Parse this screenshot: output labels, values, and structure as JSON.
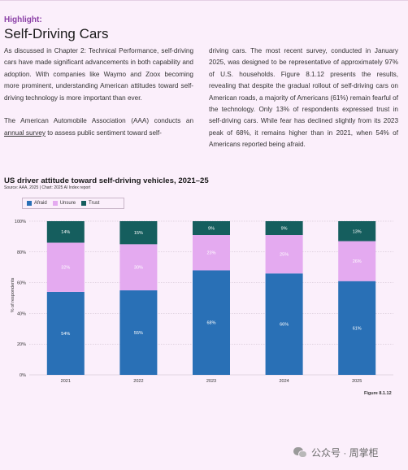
{
  "header": {
    "highlight_label": "Highlight:",
    "title": "Self-Driving Cars"
  },
  "body": {
    "left_paragraphs": [
      "As discussed in Chapter 2: Technical Performance, self-driving cars have made significant advancements in both capability and adoption. With companies like Waymo and Zoox becoming more prominent, understanding American attitudes toward self-driving technology is more important than ever.",
      "The American Automobile Association (AAA) conducts an"
    ],
    "link_text": "annual survey",
    "link_tail": " to assess public sentiment toward self-",
    "right_paragraph": "driving cars. The most recent survey, conducted in January 2025, was designed to be representative of approximately 97% of U.S. households. Figure 8.1.12 presents the results, revealing that despite the gradual rollout of self-driving cars on American roads, a majority of Americans (61%) remain fearful of the technology. Only 13% of respondents expressed trust in self-driving cars. While fear has declined slightly from its 2023 peak of 68%, it remains higher than in 2021, when 54% of Americans reported being afraid."
  },
  "chart_data": {
    "type": "bar",
    "stacked": true,
    "title": "US driver attitude toward self-driving vehicles, 2021–25",
    "source": "Source: AAA, 2025 | Chart: 2025 AI Index report",
    "ylabel": "% of respondents",
    "xlabel": "",
    "ylim": [
      0,
      100
    ],
    "yticks": [
      "0%",
      "20%",
      "40%",
      "60%",
      "80%",
      "100%"
    ],
    "categories": [
      "2021",
      "2022",
      "2023",
      "2024",
      "2025"
    ],
    "series": [
      {
        "name": "Afraid",
        "color": "#2970b6",
        "values": [
          54,
          55,
          68,
          66,
          61
        ],
        "labels": [
          "54%",
          "55%",
          "68%",
          "66%",
          "61%"
        ]
      },
      {
        "name": "Unsure",
        "color": "#e4aaf0",
        "values": [
          32,
          30,
          23,
          25,
          26
        ],
        "labels": [
          "32%",
          "30%",
          "23%",
          "25%",
          "26%"
        ]
      },
      {
        "name": "Trust",
        "color": "#155e5e",
        "values": [
          14,
          15,
          9,
          9,
          13
        ],
        "labels": [
          "14%",
          "15%",
          "9%",
          "9%",
          "13%"
        ]
      }
    ],
    "legend_position": "top-left",
    "grid": true
  },
  "figure_label": "Figure 8.1.12",
  "watermark": {
    "text": "公众号 · 周掌柜",
    "icon": "wechat-icon"
  }
}
